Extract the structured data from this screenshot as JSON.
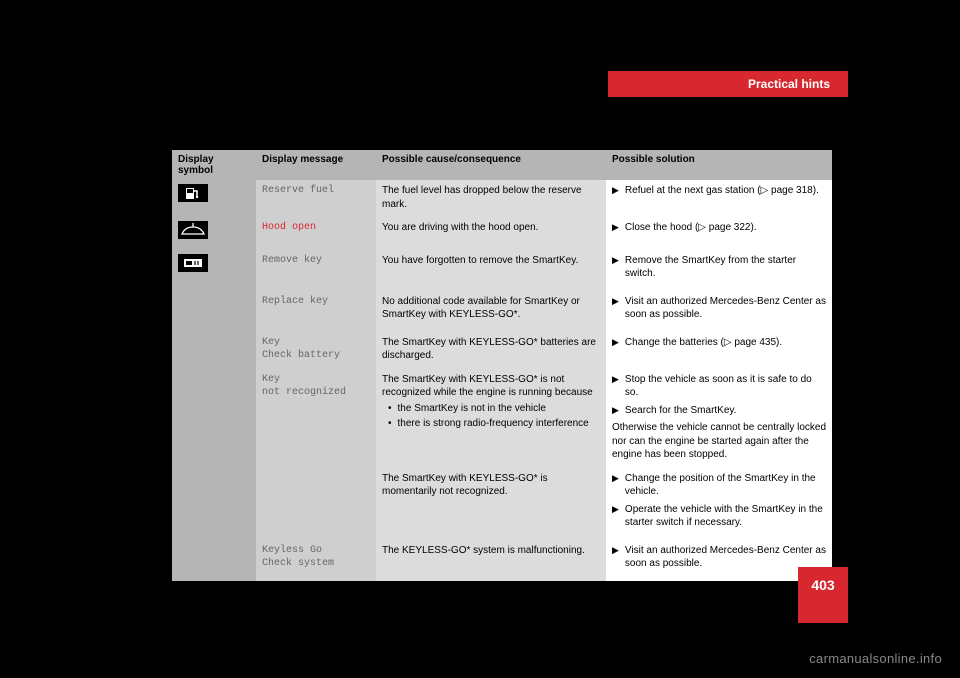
{
  "header": {
    "tab": "Practical hints"
  },
  "table": {
    "headers": {
      "symbol": "Display symbol",
      "message": "Display message",
      "cause": "Possible cause/consequence",
      "solution": "Possible solution"
    },
    "rows": [
      {
        "icon": "fuel",
        "msg": "Reserve fuel",
        "msg_color": "gray",
        "cause": "The fuel level has dropped below the reserve mark.",
        "sol": [
          {
            "text": "Refuel at the next gas station (▷ page 318)."
          }
        ]
      },
      {
        "icon": "hood",
        "msg": "Hood open",
        "msg_color": "red",
        "cause": "You are driving with the hood open.",
        "sol": [
          {
            "text": "Close the hood (▷ page 322)."
          }
        ]
      },
      {
        "icon": "key",
        "msg": "Remove key",
        "msg_color": "gray",
        "cause": "You have forgotten to remove the SmartKey.",
        "sol": [
          {
            "text": "Remove the SmartKey from the starter switch."
          }
        ]
      },
      {
        "icon": "",
        "msg": "Replace key",
        "msg_color": "gray",
        "cause": "No additional code available for SmartKey or SmartKey with KEYLESS-GO*.",
        "sol": [
          {
            "text": "Visit an authorized Mercedes-Benz Center as soon as possible."
          }
        ]
      },
      {
        "icon": "",
        "msg": "Key\nCheck battery",
        "msg_color": "gray",
        "cause": "The SmartKey with KEYLESS-GO* batteries are discharged.",
        "sol": [
          {
            "text": "Change the batteries (▷ page 435)."
          }
        ]
      },
      {
        "icon": "",
        "msg": "Key\nnot recognized",
        "msg_color": "gray",
        "cause": "The SmartKey with KEYLESS-GO* is not recognized while the engine is running because",
        "bullets": [
          "the SmartKey is not in the vehicle",
          "there is strong radio-frequency interference"
        ],
        "sol": [
          {
            "text": "Stop the vehicle as soon as it is safe to do so."
          },
          {
            "text": "Search for the SmartKey."
          }
        ],
        "sol_note": "Otherwise the vehicle cannot be centrally locked nor can the engine be started again after the engine has been stopped."
      },
      {
        "icon": "",
        "msg": "",
        "msg_color": "gray",
        "cause": "The SmartKey with KEYLESS-GO* is momentarily not recognized.",
        "sol": [
          {
            "text": "Change the position of the SmartKey in the vehicle."
          },
          {
            "text": "Operate the vehicle with the SmartKey in the starter switch if necessary."
          }
        ]
      },
      {
        "icon": "",
        "msg": "Keyless Go\nCheck system",
        "msg_color": "gray",
        "cause": "The KEYLESS-GO* system is malfunctioning.",
        "sol": [
          {
            "text": "Visit an authorized Mercedes-Benz Center as soon as possible."
          }
        ]
      }
    ]
  },
  "page_number": "403",
  "watermark": "carmanualsonline.info",
  "colors": {
    "red": "#d7282f",
    "header_bg": "#b5b5b5",
    "col2_bg": "#cfcfcf",
    "col3_bg": "#dcdcdc"
  }
}
